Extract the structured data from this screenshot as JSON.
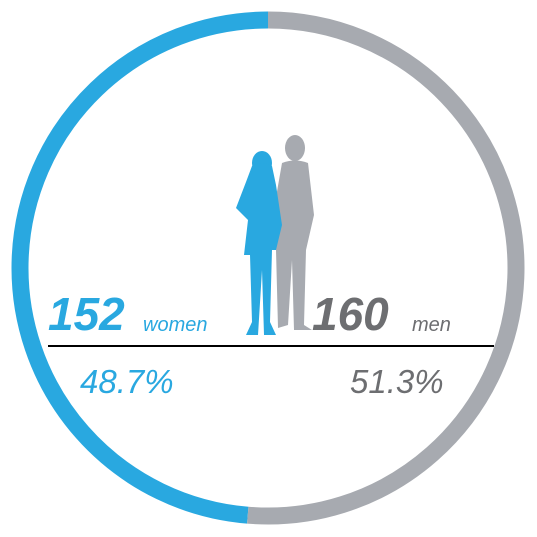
{
  "chart_data": {
    "type": "donut",
    "categories": [
      "women",
      "men"
    ],
    "counts": [
      152,
      160
    ],
    "values": [
      48.7,
      51.3
    ],
    "value_labels": [
      "48.7%",
      "51.3%"
    ],
    "colors": [
      "#29a8e0",
      "#a7aab0"
    ],
    "count_colors": [
      "#29a8e0",
      "#6d6e71"
    ]
  }
}
